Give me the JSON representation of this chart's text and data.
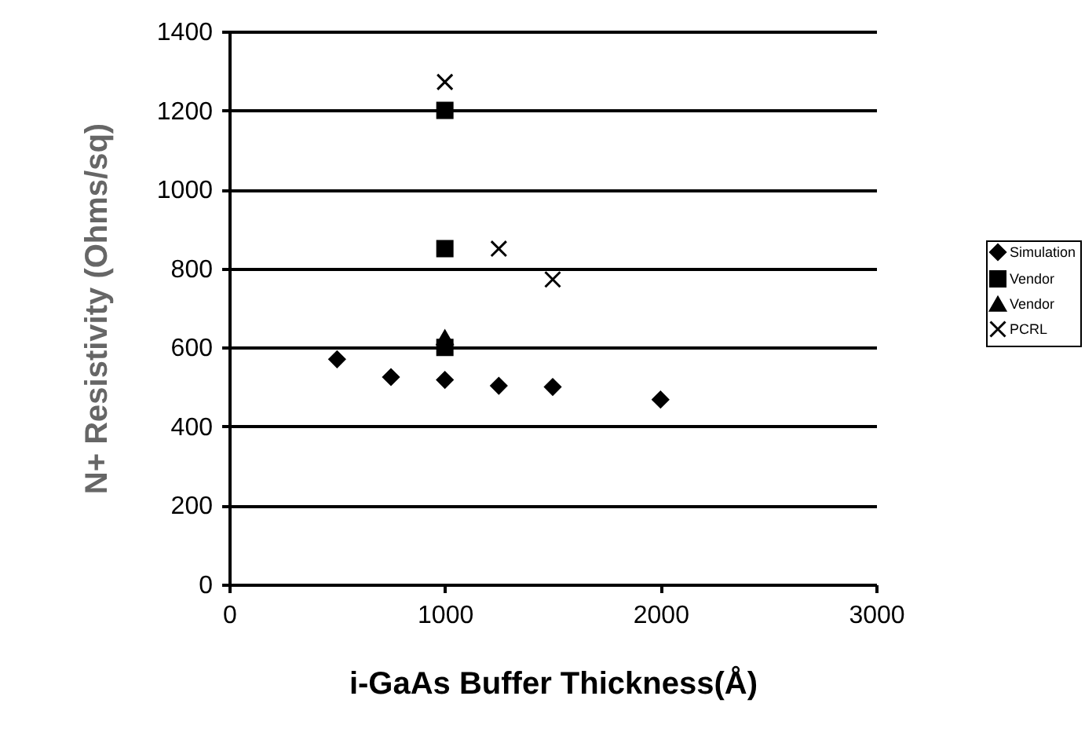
{
  "chart_data": {
    "type": "scatter",
    "xlabel": "i-GaAs Buffer Thickness(Å)",
    "ylabel": "N+ Resistivity (Ohms/sq)",
    "xlim": [
      0,
      3000
    ],
    "xticks": [
      0,
      1000,
      2000,
      3000
    ],
    "ylim": [
      0,
      1400
    ],
    "yticks": [
      0,
      200,
      400,
      600,
      800,
      1000,
      1200,
      1400
    ],
    "grid": "y",
    "legend": "right",
    "series": [
      {
        "name": "Simulation",
        "color": "#000000",
        "marker": "diamond",
        "x": [
          500,
          750,
          1000,
          1250,
          1500,
          2000
        ],
        "values": [
          570,
          525,
          518,
          503,
          500,
          468
        ]
      },
      {
        "name": "Vendor",
        "color": "#000000",
        "marker": "square",
        "x": [
          1000,
          1000,
          1000
        ],
        "values": [
          1200,
          850,
          600
        ]
      },
      {
        "name": "Vendor",
        "color": "#000000",
        "marker": "triangle",
        "x": [
          1000
        ],
        "values": [
          625
        ]
      },
      {
        "name": "PCRL",
        "color": "#000000",
        "marker": "cross",
        "x": [
          1000,
          1250,
          1500
        ],
        "values": [
          1272,
          850,
          772
        ]
      }
    ]
  }
}
